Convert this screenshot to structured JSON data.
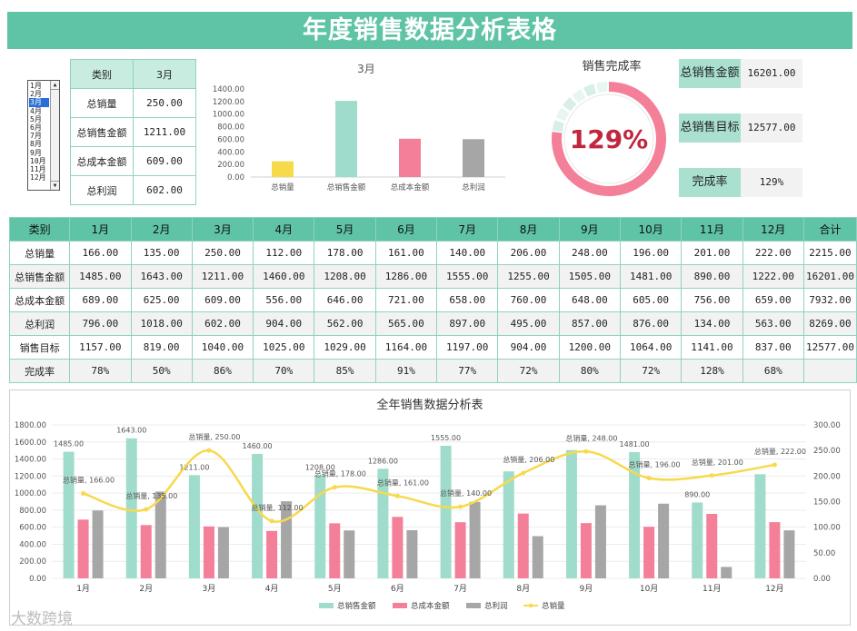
{
  "title": "年度销售数据分析表格",
  "month_list": {
    "options": [
      "1月",
      "2月",
      "3月",
      "4月",
      "5月",
      "6月",
      "7月",
      "8月",
      "9月",
      "10月",
      "11月",
      "12月"
    ],
    "selected": "3月",
    "scroll_up": "▲",
    "scroll_down": "▼"
  },
  "month_table": {
    "header": [
      "类别",
      "3月"
    ],
    "rows": [
      {
        "label": "总销量",
        "value": "250.00"
      },
      {
        "label": "总销售金额",
        "value": "1211.00"
      },
      {
        "label": "总成本金额",
        "value": "609.00"
      },
      {
        "label": "总利润",
        "value": "602.00"
      }
    ]
  },
  "month_chart": {
    "type": "bar",
    "title": "3月",
    "categories": [
      "总销量",
      "总销售金额",
      "总成本金额",
      "总利润"
    ],
    "values": [
      250,
      1211,
      609,
      602
    ],
    "colors": [
      "#f7d94c",
      "#a0dccb",
      "#f47f98",
      "#a6a6a6"
    ],
    "ylim": [
      0,
      1400
    ],
    "yticks": [
      "0.00",
      "200.00",
      "400.00",
      "600.00",
      "800.00",
      "1000.00",
      "1200.00",
      "1400.00"
    ]
  },
  "donut": {
    "title": "销售完成率",
    "value": 1.29,
    "label": "129%",
    "accent": "#f47f98",
    "track": "#d7efe6",
    "text_color": "#c0273f"
  },
  "kpis": [
    {
      "label": "总销售金额",
      "value": "16201.00"
    },
    {
      "label": "总销售目标",
      "value": "12577.00"
    },
    {
      "label": "完成率",
      "value": "129%"
    }
  ],
  "main_table": {
    "header": [
      "类别",
      "1月",
      "2月",
      "3月",
      "4月",
      "5月",
      "6月",
      "7月",
      "8月",
      "9月",
      "10月",
      "11月",
      "12月",
      "合计"
    ],
    "rows": [
      [
        "总销量",
        "166.00",
        "135.00",
        "250.00",
        "112.00",
        "178.00",
        "161.00",
        "140.00",
        "206.00",
        "248.00",
        "196.00",
        "201.00",
        "222.00",
        "2215.00"
      ],
      [
        "总销售金额",
        "1485.00",
        "1643.00",
        "1211.00",
        "1460.00",
        "1208.00",
        "1286.00",
        "1555.00",
        "1255.00",
        "1505.00",
        "1481.00",
        "890.00",
        "1222.00",
        "16201.00"
      ],
      [
        "总成本金额",
        "689.00",
        "625.00",
        "609.00",
        "556.00",
        "646.00",
        "721.00",
        "658.00",
        "760.00",
        "648.00",
        "605.00",
        "756.00",
        "659.00",
        "7932.00"
      ],
      [
        "总利润",
        "796.00",
        "1018.00",
        "602.00",
        "904.00",
        "562.00",
        "565.00",
        "897.00",
        "495.00",
        "857.00",
        "876.00",
        "134.00",
        "563.00",
        "8269.00"
      ],
      [
        "销售目标",
        "1157.00",
        "819.00",
        "1040.00",
        "1025.00",
        "1029.00",
        "1164.00",
        "1197.00",
        "904.00",
        "1200.00",
        "1064.00",
        "1141.00",
        "837.00",
        "12577.00"
      ],
      [
        "完成率",
        "78%",
        "50%",
        "86%",
        "70%",
        "85%",
        "91%",
        "77%",
        "72%",
        "80%",
        "72%",
        "128%",
        "68%",
        ""
      ]
    ]
  },
  "chart_data": {
    "type": "bar",
    "title": "全年销售数据分析表",
    "categories": [
      "1月",
      "2月",
      "3月",
      "4月",
      "5月",
      "6月",
      "7月",
      "8月",
      "9月",
      "10月",
      "11月",
      "12月"
    ],
    "series": [
      {
        "name": "总销售金额",
        "type": "bar",
        "axis": "left",
        "color": "#a0dccb",
        "values": [
          1485,
          1643,
          1211,
          1460,
          1208,
          1286,
          1555,
          1255,
          1505,
          1481,
          890,
          1222
        ]
      },
      {
        "name": "总成本金额",
        "type": "bar",
        "axis": "left",
        "color": "#f47f98",
        "values": [
          689,
          625,
          609,
          556,
          646,
          721,
          658,
          760,
          648,
          605,
          756,
          659
        ]
      },
      {
        "name": "总利润",
        "type": "bar",
        "axis": "left",
        "color": "#a6a6a6",
        "values": [
          796,
          1018,
          602,
          904,
          562,
          565,
          897,
          495,
          857,
          876,
          134,
          563
        ]
      },
      {
        "name": "总销量",
        "type": "line",
        "axis": "right",
        "color": "#f7d94c",
        "values": [
          166,
          135,
          250,
          112,
          178,
          161,
          140,
          206,
          248,
          196,
          201,
          222
        ]
      }
    ],
    "left_ylim": [
      0,
      1800
    ],
    "right_ylim": [
      0,
      300
    ],
    "left_ticks": [
      "0.00",
      "200.00",
      "400.00",
      "600.00",
      "800.00",
      "1000.00",
      "1200.00",
      "1400.00",
      "1600.00",
      "1800.00"
    ],
    "right_ticks": [
      "0.00",
      "50.00",
      "100.00",
      "150.00",
      "200.00",
      "250.00",
      "300.00"
    ],
    "bar_labels": [
      "1485.00",
      "1643.00",
      "1211.00",
      "1460.00",
      "1208.00",
      "1286.00",
      "1555.00",
      "",
      "",
      "1481.00",
      "890.00",
      ""
    ],
    "line_labels": [
      "总销量, 166.00",
      "总销量, 135.00",
      "总销量, 250.00",
      "总销量, 112.00",
      "总销量, 178.00",
      "总销量, 161.00",
      "总销量, 140.00",
      "总销量, 206.00",
      "总销量, 248.00",
      "总销量, 196.00",
      "总销量, 201.00",
      "总销量, 222.00"
    ],
    "legend_position": "bottom"
  },
  "watermark": "大数跨境"
}
